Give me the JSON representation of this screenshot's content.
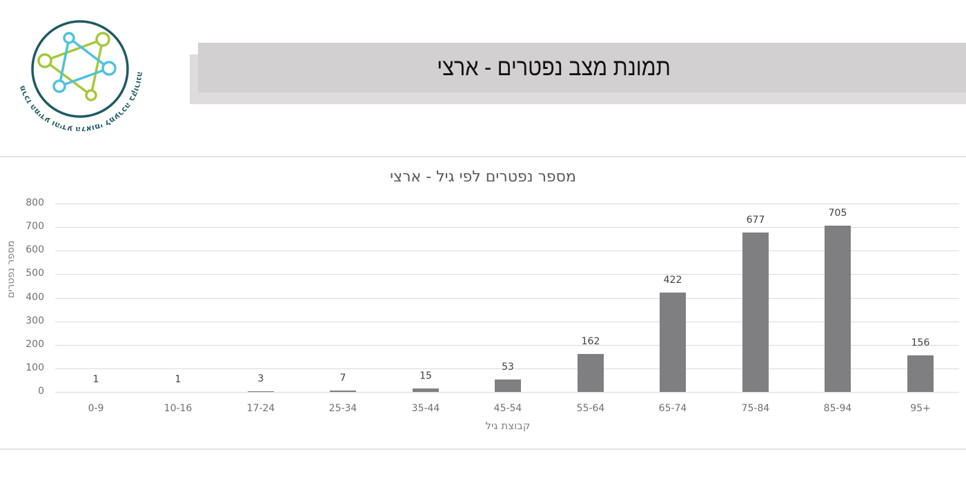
{
  "header": {
    "title": "תמונת מצב נפטרים - ארצי",
    "logo": {
      "text": "מרכז המידע והידע הלאומי למערכה בקורונה",
      "colors": {
        "ring": "#1e5a63",
        "green": "#a4c93a",
        "blue": "#4fc1df"
      }
    }
  },
  "chart_data": {
    "type": "bar",
    "title": "מספר נפטרים לפי גיל - ארצי",
    "xlabel": "קבוצת גיל",
    "ylabel": "מספר נפטרים",
    "categories": [
      "0-9",
      "10-16",
      "17-24",
      "25-34",
      "35-44",
      "45-54",
      "55-64",
      "65-74",
      "75-84",
      "85-94",
      "95+"
    ],
    "values": [
      1,
      1,
      3,
      7,
      15,
      53,
      162,
      422,
      677,
      705,
      156
    ],
    "ylim": [
      0,
      800
    ],
    "yticks": [
      0,
      100,
      200,
      300,
      400,
      500,
      600,
      700,
      800
    ],
    "grid": true,
    "legend": "none",
    "data_labels": true,
    "bar_color": "#7f7e80"
  }
}
